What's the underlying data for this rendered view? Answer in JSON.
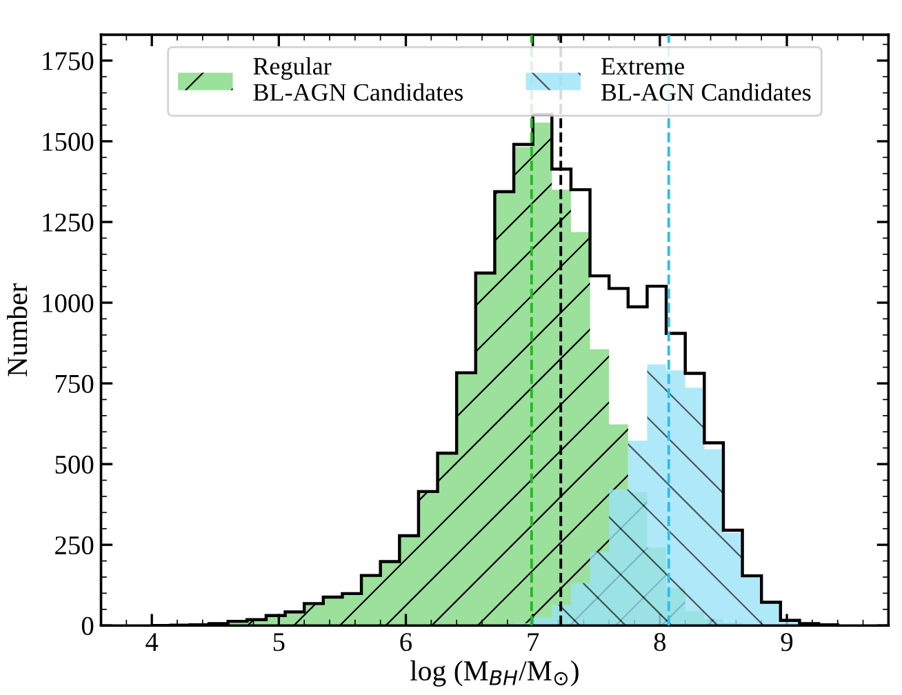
{
  "chart_data": {
    "type": "histogram",
    "xlabel": "log (M$_{BH}$/M$_{⊙}$)",
    "ylabel": "Number",
    "bins": [
      4.0,
      4.15,
      4.3,
      4.45,
      4.6,
      4.75,
      4.9,
      5.05,
      5.2,
      5.35,
      5.5,
      5.65,
      5.8,
      5.95,
      6.1,
      6.25,
      6.4,
      6.55,
      6.7,
      6.85,
      7.0,
      7.15,
      7.3,
      7.45,
      7.6,
      7.75,
      7.9,
      8.05,
      8.2,
      8.35,
      8.5,
      8.65,
      8.8,
      8.95,
      9.1,
      9.25,
      9.4
    ],
    "series": [
      {
        "name": "Regular\nBL-AGN Candidates",
        "color": "#9be09b",
        "values": [
          0,
          1,
          2,
          6,
          13,
          18,
          31,
          42,
          68,
          88,
          99,
          155,
          198,
          278,
          415,
          534,
          783,
          1090,
          1340,
          1482,
          1558,
          1350,
          1219,
          856,
          623,
          414,
          242,
          115,
          44,
          20,
          8,
          0,
          0,
          0,
          0,
          0
        ]
      },
      {
        "name": "Extreme\nBL-AGN Candidates",
        "color": "#9be3f8",
        "values": [
          0,
          0,
          0,
          0,
          0,
          0,
          0,
          0,
          0,
          0,
          0,
          0,
          0,
          0,
          0,
          0,
          0,
          2,
          4,
          8,
          25,
          64,
          131,
          227,
          421,
          573,
          809,
          790,
          737,
          546,
          287,
          154,
          72,
          16,
          6,
          2
        ]
      },
      {
        "color": "#000000",
        "values": [
          0,
          1,
          2,
          6,
          13,
          18,
          31,
          42,
          68,
          88,
          99,
          155,
          198,
          278,
          415,
          534,
          783,
          1092,
          1344,
          1490,
          1583,
          1414,
          1350,
          1083,
          1044,
          987,
          1051,
          905,
          781,
          566,
          295,
          154,
          72,
          16,
          6,
          2
        ]
      }
    ],
    "ref_lines": [
      {
        "axis": "x",
        "value": 6.99,
        "color": "#22bb22",
        "line_style": "dashed"
      },
      {
        "axis": "x",
        "value": 7.22,
        "color": "#000000",
        "line_style": "dashed"
      },
      {
        "axis": "x",
        "value": 8.07,
        "color": "#33bbee",
        "line_style": "dashed"
      }
    ],
    "xlim": [
      3.6,
      9.8
    ],
    "xticks": [
      4,
      5,
      6,
      7,
      8,
      9
    ],
    "ylim": [
      0,
      1830
    ],
    "yticks": [
      0,
      250,
      500,
      750,
      1000,
      1250,
      1500,
      1750
    ],
    "grid": false,
    "legend": "top"
  }
}
